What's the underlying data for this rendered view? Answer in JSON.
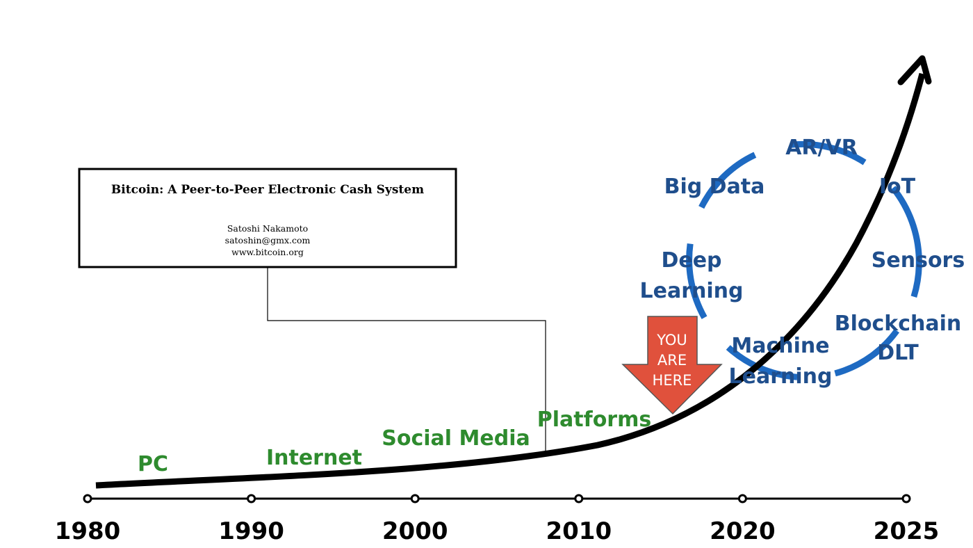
{
  "paper": {
    "title": "Bitcoin: A Peer-to-Peer Electronic Cash System",
    "author": "Satoshi Nakamoto",
    "email": "satoshin@gmx.com",
    "website": "www.bitcoin.org"
  },
  "timeline": {
    "years": [
      "1980",
      "1990",
      "2000",
      "2010",
      "2020",
      "2025"
    ]
  },
  "eras": [
    "PC",
    "Internet",
    "Social Media",
    "Platforms"
  ],
  "you_are_here": {
    "lines": [
      "YOU",
      "ARE",
      "HERE"
    ],
    "color": "#e0513c"
  },
  "technologies": {
    "ar_vr": "AR/VR",
    "big_data": "Big Data",
    "iot": "IoT",
    "deep_learning": [
      "Deep",
      "Learning"
    ],
    "sensors": "Sensors",
    "machine_learning": [
      "Machine",
      "Learning"
    ],
    "blockchain": [
      "Blockchain",
      "DLT"
    ]
  },
  "colors": {
    "era_text": "#2e8b2e",
    "tech_text": "#1f4e8c",
    "cycle_ring": "#1e6ac2",
    "curve": "#000000"
  }
}
